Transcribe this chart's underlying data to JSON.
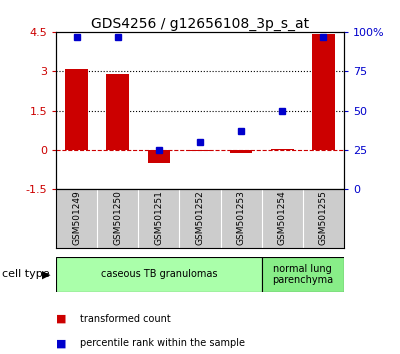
{
  "title": "GDS4256 / g12656108_3p_s_at",
  "samples": [
    "GSM501249",
    "GSM501250",
    "GSM501251",
    "GSM501252",
    "GSM501253",
    "GSM501254",
    "GSM501255"
  ],
  "red_values": [
    3.1,
    2.9,
    -0.5,
    -0.05,
    -0.1,
    0.02,
    4.4
  ],
  "blue_values": [
    0.97,
    0.97,
    0.25,
    0.3,
    0.37,
    0.5,
    0.97
  ],
  "ylim_left": [
    -1.5,
    4.5
  ],
  "ylim_right": [
    0.0,
    1.0
  ],
  "yticks_left": [
    -1.5,
    0.0,
    1.5,
    3.0,
    4.5
  ],
  "ytick_labels_left": [
    "-1.5",
    "0",
    "1.5",
    "3",
    "4.5"
  ],
  "yticks_right": [
    0.0,
    0.25,
    0.5,
    0.75,
    1.0
  ],
  "ytick_labels_right": [
    "0",
    "25",
    "50",
    "75",
    "100%"
  ],
  "hlines": [
    1.5,
    3.0
  ],
  "red_color": "#cc0000",
  "blue_color": "#0000cc",
  "bar_width": 0.55,
  "cell_types": [
    {
      "label": "caseous TB granulomas",
      "start": 0,
      "end": 5,
      "color": "#aaffaa"
    },
    {
      "label": "normal lung\nparenchyma",
      "start": 5,
      "end": 7,
      "color": "#88ee88"
    }
  ],
  "legend_items": [
    {
      "label": "transformed count",
      "color": "#cc0000"
    },
    {
      "label": "percentile rank within the sample",
      "color": "#0000cc"
    }
  ],
  "cell_type_label": "cell type",
  "background_color": "#ffffff",
  "axis_bg": "#ffffff",
  "sample_bg": "#cccccc"
}
